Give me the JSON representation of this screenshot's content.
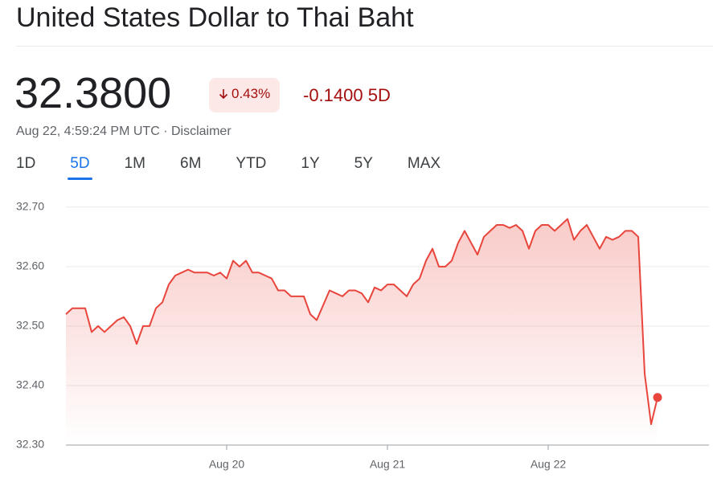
{
  "header": {
    "title": "United States Dollar to Thai Baht",
    "price": "32.3800",
    "change_percent": "0.43%",
    "change": "-0.1400",
    "period": "5D",
    "timestamp": "Aug 22, 4:59:24 PM UTC",
    "disclaimer": "Disclaimer"
  },
  "tabs": {
    "items": [
      "1D",
      "5D",
      "1M",
      "6M",
      "YTD",
      "1Y",
      "5Y",
      "MAX"
    ],
    "selected": 1
  },
  "chart_data": {
    "type": "line",
    "color": "#e8453c",
    "values": [
      32.52,
      32.53,
      32.53,
      32.53,
      32.49,
      32.5,
      32.49,
      32.5,
      32.51,
      32.515,
      32.5,
      32.47,
      32.5,
      32.5,
      32.53,
      32.54,
      32.57,
      32.585,
      32.59,
      32.595,
      32.59,
      32.59,
      32.59,
      32.585,
      32.59,
      32.58,
      32.61,
      32.6,
      32.61,
      32.59,
      32.59,
      32.585,
      32.58,
      32.56,
      32.56,
      32.55,
      32.55,
      32.55,
      32.52,
      32.51,
      32.535,
      32.56,
      32.555,
      32.55,
      32.56,
      32.56,
      32.555,
      32.54,
      32.565,
      32.56,
      32.57,
      32.57,
      32.56,
      32.55,
      32.57,
      32.58,
      32.61,
      32.63,
      32.6,
      32.6,
      32.61,
      32.64,
      32.66,
      32.64,
      32.62,
      32.65,
      32.66,
      32.67,
      32.67,
      32.665,
      32.67,
      32.66,
      32.63,
      32.66,
      32.67,
      32.67,
      32.66,
      32.67,
      32.68,
      32.645,
      32.66,
      32.67,
      32.65,
      32.63,
      32.65,
      32.645,
      32.65,
      32.66,
      32.66,
      32.65,
      32.42,
      32.335,
      32.38
    ],
    "xlim": [
      0,
      100
    ],
    "xticks": [
      {
        "value": 25,
        "label": "Aug 20"
      },
      {
        "value": 50,
        "label": "Aug 21"
      },
      {
        "value": 75,
        "label": "Aug 22"
      }
    ],
    "ylim": [
      32.3,
      32.72
    ],
    "yticks": [
      {
        "value": 32.3,
        "label": "32.30"
      },
      {
        "value": 32.4,
        "label": "32.40"
      },
      {
        "value": 32.5,
        "label": "32.50"
      },
      {
        "value": 32.6,
        "label": "32.60"
      },
      {
        "value": 32.7,
        "label": "32.70"
      }
    ],
    "grid": true
  }
}
